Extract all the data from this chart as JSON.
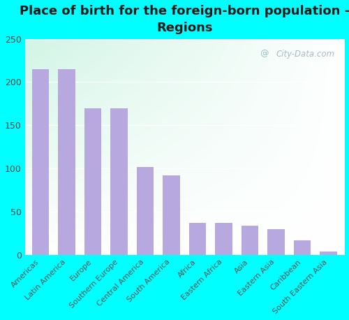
{
  "title": "Place of birth for the foreign-born population -\nRegions",
  "categories": [
    "Americas",
    "Latin America",
    "Europe",
    "Southern Europe",
    "Central America",
    "South America",
    "Africa",
    "Eastern Africa",
    "Asia",
    "Eastern Asia",
    "Caribbean",
    "South Eastern Asia"
  ],
  "values": [
    215,
    215,
    170,
    170,
    102,
    92,
    37,
    37,
    34,
    30,
    17,
    4
  ],
  "bar_color": "#b8a8e0",
  "background_color": "#00ffff",
  "ylim": [
    0,
    250
  ],
  "yticks": [
    0,
    50,
    100,
    150,
    200,
    250
  ],
  "title_fontsize": 13,
  "tick_label_fontsize": 8,
  "watermark_text": "City-Data.com",
  "title_color": "#1a1a1a",
  "grad_topleft": [
    0.82,
    0.96,
    0.88
  ],
  "grad_topright": [
    0.93,
    0.98,
    0.95
  ],
  "grad_bottomleft": [
    0.88,
    0.98,
    0.96
  ],
  "grad_bottomright": [
    0.98,
    1.0,
    1.0
  ]
}
